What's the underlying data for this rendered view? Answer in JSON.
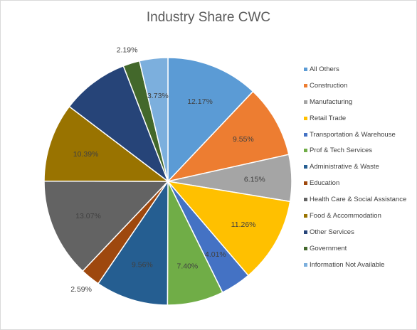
{
  "chart_data": {
    "type": "pie",
    "title": "Industry Share CWC",
    "legend_position": "right",
    "start_angle_deg": 0,
    "slices": [
      {
        "name": "All Others",
        "value": 12.17,
        "label": "12.17%",
        "color": "#5b9bd5",
        "label_color": "#404040"
      },
      {
        "name": "Construction",
        "value": 9.55,
        "label": "9.55%",
        "color": "#ed7d31",
        "label_color": "#404040"
      },
      {
        "name": "Manufacturing",
        "value": 6.15,
        "label": "6.15%",
        "color": "#a5a5a5",
        "label_color": "#404040"
      },
      {
        "name": "Retail Trade",
        "value": 11.26,
        "label": "11.26%",
        "color": "#ffc000",
        "label_color": "#404040"
      },
      {
        "name": "Transportation & Warehouse",
        "value": 4.01,
        "label": "4.01%",
        "color": "#4472c4",
        "label_color": "#404040"
      },
      {
        "name": "Prof & Tech Services",
        "value": 7.4,
        "label": "7.40%",
        "color": "#70ad47",
        "label_color": "#404040"
      },
      {
        "name": "Administrative & Waste",
        "value": 9.56,
        "label": "9.56%",
        "color": "#255e91",
        "label_color": "#404040"
      },
      {
        "name": "Education",
        "value": 2.59,
        "label": "2.59%",
        "color": "#9e480e",
        "label_color": "#404040"
      },
      {
        "name": "Health Care & Social Assistance",
        "value": 13.07,
        "label": "13.07%",
        "color": "#636363",
        "label_color": "#404040"
      },
      {
        "name": "Food & Accommodation",
        "value": 10.39,
        "label": "10.39%",
        "color": "#997300",
        "label_color": "#404040"
      },
      {
        "name": "Other Services",
        "value": 8.89,
        "label": "",
        "color": "#264478",
        "label_color": "#404040"
      },
      {
        "name": "Government",
        "value": 2.19,
        "label": "2.19%",
        "color": "#43682b",
        "label_color": "#404040"
      },
      {
        "name": "Information Not Available",
        "value": 3.73,
        "label": "3.73%",
        "color": "#7cafdd",
        "label_color": "#404040"
      }
    ]
  }
}
